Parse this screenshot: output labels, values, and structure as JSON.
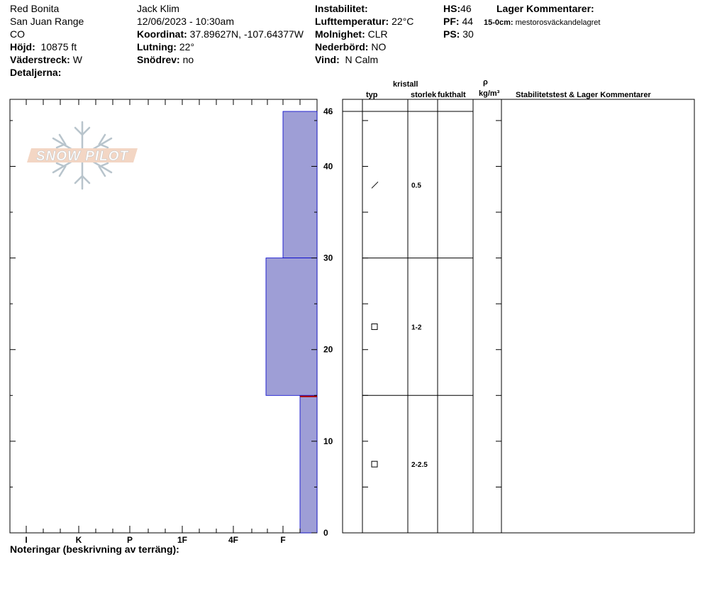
{
  "header": {
    "location": "Red Bonita",
    "range": "San Juan Range",
    "state": "CO",
    "elevation_label": "Höjd:",
    "elevation_value": "10875 ft",
    "aspect_label": "Väderstreck:",
    "aspect_value": "W",
    "details_label": "Detaljerna:",
    "observer": "Jack Klim",
    "datetime": "12/06/2023 - 10:30am",
    "coord_label": "Koordinat:",
    "coord_value": "37.89627N, -107.64377W",
    "slope_label": "Lutning:",
    "slope_value": "22°",
    "wind_loading_label": "Snödrev:",
    "wind_loading_value": "no",
    "instability_label": "Instabilitet:",
    "air_temp_label": "Lufttemperatur:",
    "air_temp_value": "22°C",
    "sky_label": "Molnighet:",
    "sky_value": "CLR",
    "precip_label": "Nederbörd:",
    "precip_value": "NO",
    "wind_label": "Vind:",
    "wind_value": "N Calm",
    "hs_label": "HS:",
    "hs_value": "46",
    "pf_label": "PF:",
    "pf_value": "44",
    "ps_label": "PS:",
    "ps_value": "30",
    "layer_comments_title": "Lager Kommentarer:",
    "layer_comment_range": "15-0cm:",
    "layer_comment_text": "mestorosväckandelagret"
  },
  "logo_text": "SNOW PILOT",
  "footer_note_label": "Noteringar (beskrivning av terräng):",
  "table_headers": {
    "crystal": "kristall",
    "type": "typ",
    "size": "storlek",
    "moisture": "fukthalt",
    "rho": "ρ",
    "density_unit": "kg/m³",
    "stability": "Stabilitetstest & Lager Kommentarer"
  },
  "chart_data": {
    "type": "bar",
    "title": "",
    "xlabel": "",
    "ylabel": "",
    "y_ticks": [
      0,
      10,
      20,
      30,
      40,
      46
    ],
    "ylim": [
      0,
      46
    ],
    "hardness_scale": [
      "I",
      "K",
      "P",
      "1F",
      "4F",
      "F"
    ],
    "hardness_note": "hardness axis increases to the left; F is the rightmost labeled tick",
    "layers": [
      {
        "top": 46,
        "bottom": 30,
        "hardness": "F",
        "crystal_type": "precipitation-particles",
        "crystal_size": "0.5"
      },
      {
        "top": 30,
        "bottom": 15,
        "hardness": "F+",
        "crystal_type": "faceted",
        "crystal_size": "1-2"
      },
      {
        "top": 15,
        "bottom": 0,
        "hardness": "F-",
        "crystal_type": "faceted",
        "crystal_size": "2-2.5"
      }
    ],
    "highlight_layer_boundary": 15,
    "colors": {
      "layer_fill": "#9e9ed6",
      "layer_stroke": "#0000cc",
      "boundary": "#b00000"
    }
  }
}
